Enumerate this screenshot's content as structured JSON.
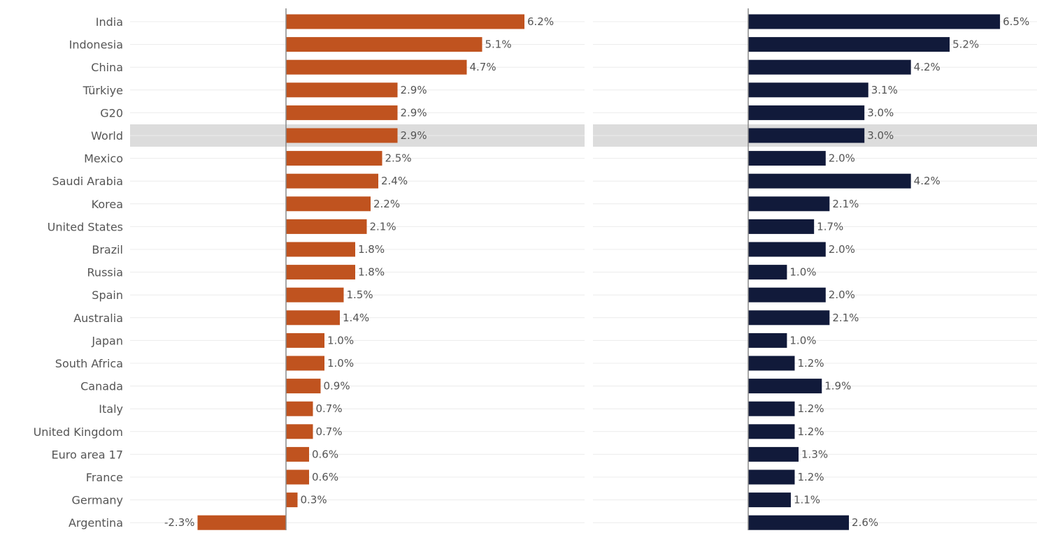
{
  "chart_data": [
    {
      "type": "bar",
      "orientation": "horizontal",
      "color": "#C0531F",
      "highlight_category": "World",
      "highlight_color": "#DCDCDC",
      "grid": true,
      "categories": [
        "India",
        "Indonesia",
        "China",
        "Türkiye",
        "G20",
        "World",
        "Mexico",
        "Saudi Arabia",
        "Korea",
        "United States",
        "Brazil",
        "Russia",
        "Spain",
        "Australia",
        "Japan",
        "South Africa",
        "Canada",
        "Italy",
        "United Kingdom",
        "Euro area 17",
        "France",
        "Germany",
        "Argentina"
      ],
      "values": [
        6.2,
        5.1,
        4.7,
        2.9,
        2.9,
        2.9,
        2.5,
        2.4,
        2.2,
        2.1,
        1.8,
        1.8,
        1.5,
        1.4,
        1.0,
        1.0,
        0.9,
        0.7,
        0.7,
        0.6,
        0.6,
        0.3,
        -2.3
      ],
      "value_labels": [
        "6.2%",
        "5.1%",
        "4.7%",
        "2.9%",
        "2.9%",
        "2.9%",
        "2.5%",
        "2.4%",
        "2.2%",
        "2.1%",
        "1.8%",
        "1.8%",
        "1.5%",
        "1.4%",
        "1.0%",
        "1.0%",
        "0.9%",
        "0.7%",
        "0.7%",
        "0.6%",
        "0.6%",
        "0.3%",
        "-2.3%"
      ]
    },
    {
      "type": "bar",
      "orientation": "horizontal",
      "color": "#111A3A",
      "highlight_category": "World",
      "highlight_color": "#DCDCDC",
      "grid": true,
      "categories": [
        "India",
        "Indonesia",
        "China",
        "Türkiye",
        "G20",
        "World",
        "Mexico",
        "Saudi Arabia",
        "Korea",
        "United States",
        "Brazil",
        "Russia",
        "Spain",
        "Australia",
        "Japan",
        "South Africa",
        "Canada",
        "Italy",
        "United Kingdom",
        "Euro area 17",
        "France",
        "Germany",
        "Argentina"
      ],
      "values": [
        6.5,
        5.2,
        4.2,
        3.1,
        3.0,
        3.0,
        2.0,
        4.2,
        2.1,
        1.7,
        2.0,
        1.0,
        2.0,
        2.1,
        1.0,
        1.2,
        1.9,
        1.2,
        1.2,
        1.3,
        1.2,
        1.1,
        2.6
      ],
      "value_labels": [
        "6.5%",
        "5.2%",
        "4.2%",
        "3.1%",
        "3.0%",
        "3.0%",
        "2.0%",
        "4.2%",
        "2.1%",
        "1.7%",
        "2.0%",
        "1.0%",
        "2.0%",
        "2.1%",
        "1.0%",
        "1.2%",
        "1.9%",
        "1.2%",
        "1.2%",
        "1.3%",
        "1.2%",
        "1.1%",
        "2.6%"
      ]
    }
  ]
}
